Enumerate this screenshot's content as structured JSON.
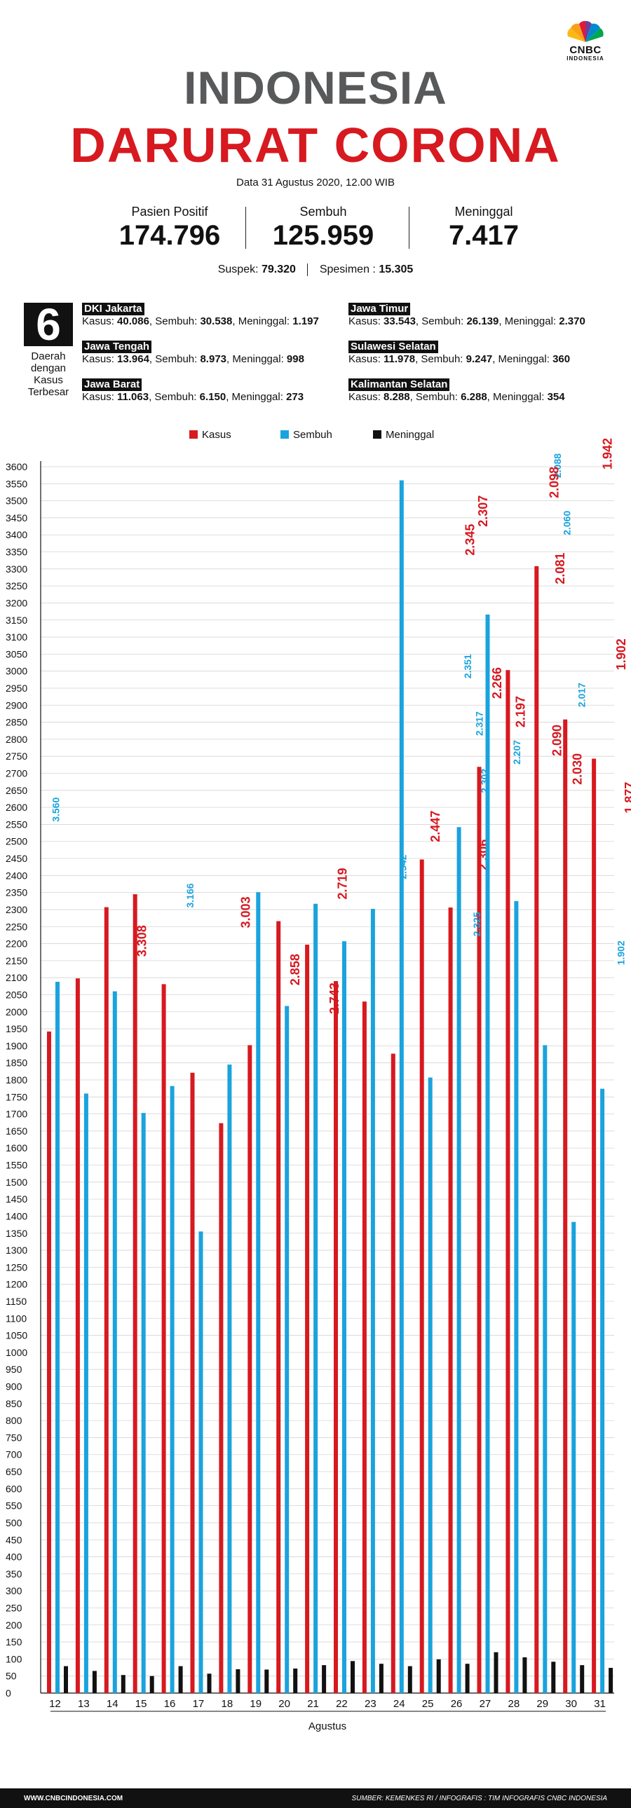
{
  "logo": {
    "text": "CNBC",
    "sub": "INDONESIA"
  },
  "header": {
    "title_line1": "INDONESIA",
    "title_line2": "DARURAT CORONA",
    "date": "Data 31 Agustus 2020, 12.00 WIB"
  },
  "stats": {
    "positif_label": "Pasien Positif",
    "positif_value": "174.796",
    "sembuh_label": "Sembuh",
    "sembuh_value": "125.959",
    "meninggal_label": "Meninggal",
    "meninggal_value": "7.417",
    "suspek_label": "Suspek:",
    "suspek_value": "79.320",
    "spesimen_label": "Spesimen :",
    "spesimen_value": "15.305"
  },
  "regions": {
    "count": "6",
    "caption": [
      "Daerah",
      "dengan",
      "Kasus",
      "Terbesar"
    ],
    "kasus_label": "Kasus:",
    "sembuh_label": ", Sembuh:",
    "meninggal_label": ", Meninggal:",
    "items": [
      {
        "name": "DKI Jakarta",
        "kasus": "40.086",
        "sembuh": "30.538",
        "meninggal": "1.197"
      },
      {
        "name": "Jawa Tengah",
        "kasus": "13.964",
        "sembuh": "8.973",
        "meninggal": "998"
      },
      {
        "name": "Jawa Barat",
        "kasus": "11.063",
        "sembuh": "6.150",
        "meninggal": "273"
      },
      {
        "name": "Jawa Timur",
        "kasus": "33.543",
        "sembuh": "26.139",
        "meninggal": "2.370"
      },
      {
        "name": "Sulawesi Selatan",
        "kasus": "11.978",
        "sembuh": "9.247",
        "meninggal": "360"
      },
      {
        "name": "Kalimantan Selatan",
        "kasus": "8.288",
        "sembuh": "6.288",
        "meninggal": "354"
      }
    ]
  },
  "colors": {
    "kasus": "#d71920",
    "sembuh": "#1aa3dd",
    "meninggal": "#111111",
    "title_gray": "#58595b"
  },
  "chart_data": {
    "type": "bar",
    "xlabel": "Agustus",
    "ylabel": "",
    "ylim": [
      0,
      3600
    ],
    "ytick_step": 50,
    "grid": true,
    "legend_position": "top-center",
    "categories": [
      "12",
      "13",
      "14",
      "15",
      "16",
      "17",
      "18",
      "19",
      "20",
      "21",
      "22",
      "23",
      "24",
      "25",
      "26",
      "27",
      "28",
      "29",
      "30",
      "31"
    ],
    "series": [
      {
        "name": "Kasus",
        "values": [
          1942,
          2098,
          2307,
          2345,
          2081,
          1821,
          1673,
          1902,
          2266,
          2197,
          2090,
          2030,
          1877,
          2447,
          2306,
          2719,
          3003,
          3308,
          2858,
          2743
        ],
        "labels": [
          "1.942",
          "2.098",
          "2.307",
          "2.345",
          "2.081",
          "1.821",
          "1.673",
          "1.902",
          "2.266",
          "2.197",
          "2.090",
          "2.030",
          "1.877",
          "2.447",
          "2.306",
          "2.719",
          "3.003",
          "3.308",
          "2.858",
          "2.743"
        ]
      },
      {
        "name": "Sembuh",
        "values": [
          2088,
          1760,
          2060,
          1703,
          1782,
          1355,
          1845,
          2351,
          2017,
          2317,
          2207,
          2302,
          3560,
          1807,
          2542,
          3166,
          2325,
          1902,
          1383,
          1774
        ],
        "labels": [
          "2.088",
          "1.760",
          "2.060",
          "1.703",
          "1.782",
          "1.355",
          "1.845",
          "2.351",
          "2.017",
          "2.317",
          "2.207",
          "2.302",
          "3.560",
          "1.807",
          "2.542",
          "3.166",
          "2.325",
          "1.902",
          "1.383",
          "1.774"
        ]
      },
      {
        "name": "Meninggal",
        "values": [
          79,
          65,
          53,
          50,
          79,
          57,
          70,
          69,
          72,
          82,
          94,
          86,
          79,
          99,
          86,
          120,
          105,
          92,
          82,
          74
        ],
        "labels": [
          "79",
          "65",
          "53",
          "50",
          "79",
          "57",
          "70",
          "69",
          "72",
          "82",
          "94",
          "86",
          "79",
          "99",
          "86",
          "120",
          "105",
          "92",
          "82",
          "74"
        ]
      }
    ]
  },
  "footer": {
    "left": "WWW.CNBCINDONESIA.COM",
    "right": "SUMBER: KEMENKES RI / INFOGRAFIS : TIM INFOGRAFIS CNBC INDONESIA"
  }
}
